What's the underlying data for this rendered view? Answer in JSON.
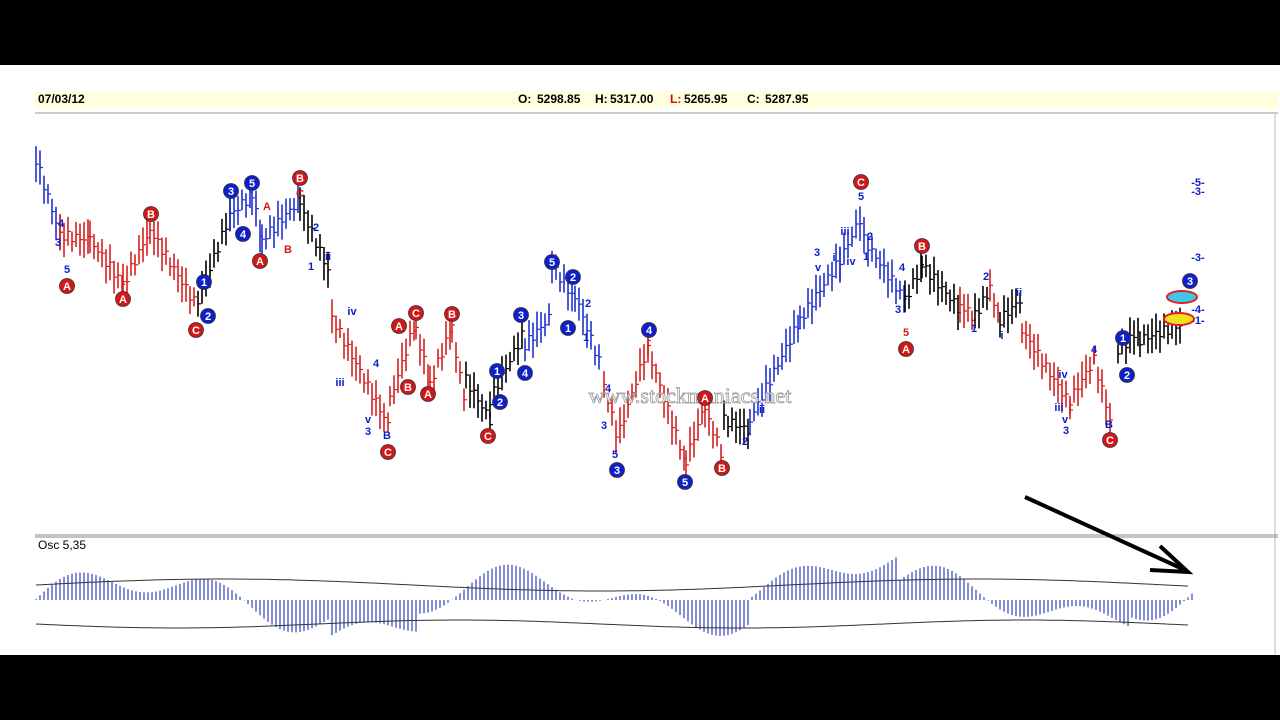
{
  "header": {
    "date": "07/03/12",
    "open_label": "O:",
    "open": "5298.85",
    "high_label": "H:",
    "high": "5317.00",
    "low_label": "L:",
    "low": "5265.95",
    "close_label": "C:",
    "close": "5287.95"
  },
  "watermark": "www.stockmaniacs.net",
  "osc_label": "Osc 5,35",
  "wave_labels": [
    {
      "t": "A",
      "s": "rc"
    },
    {
      "t": "A",
      "s": "rc"
    },
    {
      "t": "B",
      "s": "rc"
    },
    {
      "t": "C",
      "s": "rc"
    },
    {
      "t": "1",
      "s": "bc"
    },
    {
      "t": "2",
      "s": "bc"
    },
    {
      "t": "3",
      "s": "bc"
    },
    {
      "t": "4",
      "s": "bc"
    },
    {
      "t": "5",
      "s": "bc"
    },
    {
      "t": "A",
      "s": "rc"
    },
    {
      "t": "B",
      "s": "rc"
    },
    {
      "t": "A",
      "s": "rc"
    },
    {
      "t": "C",
      "s": "rc"
    },
    {
      "t": "B",
      "s": "rc"
    },
    {
      "t": "B",
      "s": "rc"
    },
    {
      "t": "A",
      "s": "rc"
    },
    {
      "t": "C",
      "s": "rc"
    },
    {
      "t": "C",
      "s": "rc"
    },
    {
      "t": "1",
      "s": "bc"
    },
    {
      "t": "2",
      "s": "bc"
    },
    {
      "t": "3",
      "s": "bc"
    },
    {
      "t": "4",
      "s": "bc"
    },
    {
      "t": "5",
      "s": "bc"
    },
    {
      "t": "2",
      "s": "bc"
    },
    {
      "t": "1",
      "s": "bc"
    },
    {
      "t": "3",
      "s": "bc"
    },
    {
      "t": "4",
      "s": "bc"
    },
    {
      "t": "5",
      "s": "bc"
    },
    {
      "t": "A",
      "s": "rc"
    },
    {
      "t": "B",
      "s": "rc"
    },
    {
      "t": "C",
      "s": "rc"
    },
    {
      "t": "B",
      "s": "rc"
    },
    {
      "t": "A",
      "s": "rc"
    },
    {
      "t": "1",
      "s": "bc"
    },
    {
      "t": "2",
      "s": "bc"
    },
    {
      "t": "3",
      "s": "bc"
    },
    {
      "t": "C",
      "s": "rc"
    },
    {
      "t": "4",
      "s": "b"
    },
    {
      "t": "3",
      "s": "b"
    },
    {
      "t": "5",
      "s": "b"
    },
    {
      "t": "A",
      "s": "r"
    },
    {
      "t": "B",
      "s": "r"
    },
    {
      "t": "C",
      "s": "r"
    },
    {
      "t": "2",
      "s": "b"
    },
    {
      "t": "1",
      "s": "b"
    },
    {
      "t": "ii",
      "s": "b"
    },
    {
      "t": "iv",
      "s": "b"
    },
    {
      "t": "iii",
      "s": "b"
    },
    {
      "t": "4",
      "s": "b"
    },
    {
      "t": "v",
      "s": "b"
    },
    {
      "t": "3",
      "s": "b"
    },
    {
      "t": "B",
      "s": "b"
    },
    {
      "t": "4",
      "s": "b"
    },
    {
      "t": "3",
      "s": "b"
    },
    {
      "t": "5",
      "s": "b"
    },
    {
      "t": "2",
      "s": "b"
    },
    {
      "t": "1",
      "s": "b"
    },
    {
      "t": "2",
      "s": "b"
    },
    {
      "t": "ii",
      "s": "b"
    },
    {
      "t": "3",
      "s": "b"
    },
    {
      "t": "v",
      "s": "b"
    },
    {
      "t": "i",
      "s": "b"
    },
    {
      "t": "iii",
      "s": "b"
    },
    {
      "t": "5",
      "s": "b"
    },
    {
      "t": "2",
      "s": "b"
    },
    {
      "t": "1",
      "s": "b"
    },
    {
      "t": "iv",
      "s": "b"
    },
    {
      "t": "4",
      "s": "b"
    },
    {
      "t": "3",
      "s": "b"
    },
    {
      "t": "5",
      "s": "r"
    },
    {
      "t": "2",
      "s": "b"
    },
    {
      "t": "1",
      "s": "b"
    },
    {
      "t": "ii",
      "s": "b"
    },
    {
      "t": "i",
      "s": "b"
    },
    {
      "t": "4",
      "s": "b"
    },
    {
      "t": "iv",
      "s": "b"
    },
    {
      "t": "iii",
      "s": "b"
    },
    {
      "t": "v",
      "s": "b"
    },
    {
      "t": "3",
      "s": "b"
    },
    {
      "t": "B",
      "s": "b"
    },
    {
      "t": "-5-",
      "s": "b"
    },
    {
      "t": "-3-",
      "s": "b"
    },
    {
      "t": "-3-",
      "s": "b"
    },
    {
      "t": "-4-",
      "s": "b"
    },
    {
      "t": "-1-",
      "s": "b"
    }
  ]
}
